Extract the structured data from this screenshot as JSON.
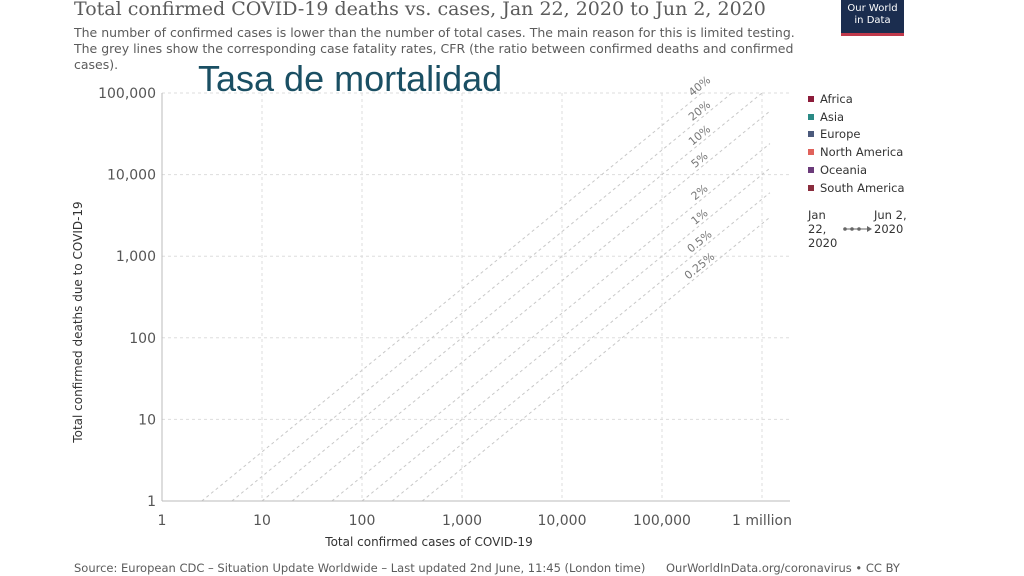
{
  "header": {
    "title": "Total confirmed COVID-19 deaths vs. cases, Jan 22, 2020 to Jun 2, 2020",
    "subtitle": "The number of confirmed cases is lower than the number of total cases. The main reason for this is limited testing. The grey lines show the corresponding case fatality rates, CFR (the ratio between confirmed deaths and confirmed cases).",
    "overlay_text": "Tasa de mortalidad"
  },
  "logo": {
    "line1": "Our World",
    "line2": "in Data"
  },
  "legend": {
    "items": [
      {
        "label": "Africa",
        "color": "#8c1c3a"
      },
      {
        "label": "Asia",
        "color": "#2a8a85"
      },
      {
        "label": "Europe",
        "color": "#4b5a7c"
      },
      {
        "label": "North America",
        "color": "#e0625b"
      },
      {
        "label": "Oceania",
        "color": "#6b3b7a"
      },
      {
        "label": "South America",
        "color": "#8a2d3d"
      }
    ]
  },
  "timeline": {
    "start": "Jan 22, 2020",
    "end": "Jun 2, 2020"
  },
  "footer": {
    "source": "Source: European CDC – Situation Update Worldwide – Last updated 2nd June, 11:45 (London time)",
    "credit": "OurWorldInData.org/coronavirus • CC BY"
  },
  "chart_data": {
    "type": "scatter",
    "title": "Total confirmed COVID-19 deaths vs. cases, Jan 22, 2020 to Jun 2, 2020",
    "xlabel": "Total confirmed cases of COVID-19",
    "ylabel": "Total confirmed deaths due to COVID-19",
    "x_scale": "log",
    "y_scale": "log",
    "xlim": [
      1,
      1000000
    ],
    "ylim": [
      1,
      100000
    ],
    "x_ticks": [
      {
        "value": 1,
        "label": "1"
      },
      {
        "value": 10,
        "label": "10"
      },
      {
        "value": 100,
        "label": "100"
      },
      {
        "value": 1000,
        "label": "1,000"
      },
      {
        "value": 10000,
        "label": "10,000"
      },
      {
        "value": 100000,
        "label": "100,000"
      },
      {
        "value": 1000000,
        "label": "1 million"
      }
    ],
    "y_ticks": [
      {
        "value": 1,
        "label": "1"
      },
      {
        "value": 10,
        "label": "10"
      },
      {
        "value": 100,
        "label": "100"
      },
      {
        "value": 1000,
        "label": "1,000"
      },
      {
        "value": 10000,
        "label": "10,000"
      },
      {
        "value": 100000,
        "label": "100,000"
      }
    ],
    "grid": true,
    "cfr_lines": [
      {
        "rate": 0.4,
        "label": "40%"
      },
      {
        "rate": 0.2,
        "label": "20%"
      },
      {
        "rate": 0.1,
        "label": "10%"
      },
      {
        "rate": 0.05,
        "label": "5%"
      },
      {
        "rate": 0.02,
        "label": "2%"
      },
      {
        "rate": 0.01,
        "label": "1%"
      },
      {
        "rate": 0.005,
        "label": "0.5%"
      },
      {
        "rate": 0.0025,
        "label": "0.25%"
      }
    ],
    "series": [],
    "legend_position": "right"
  }
}
